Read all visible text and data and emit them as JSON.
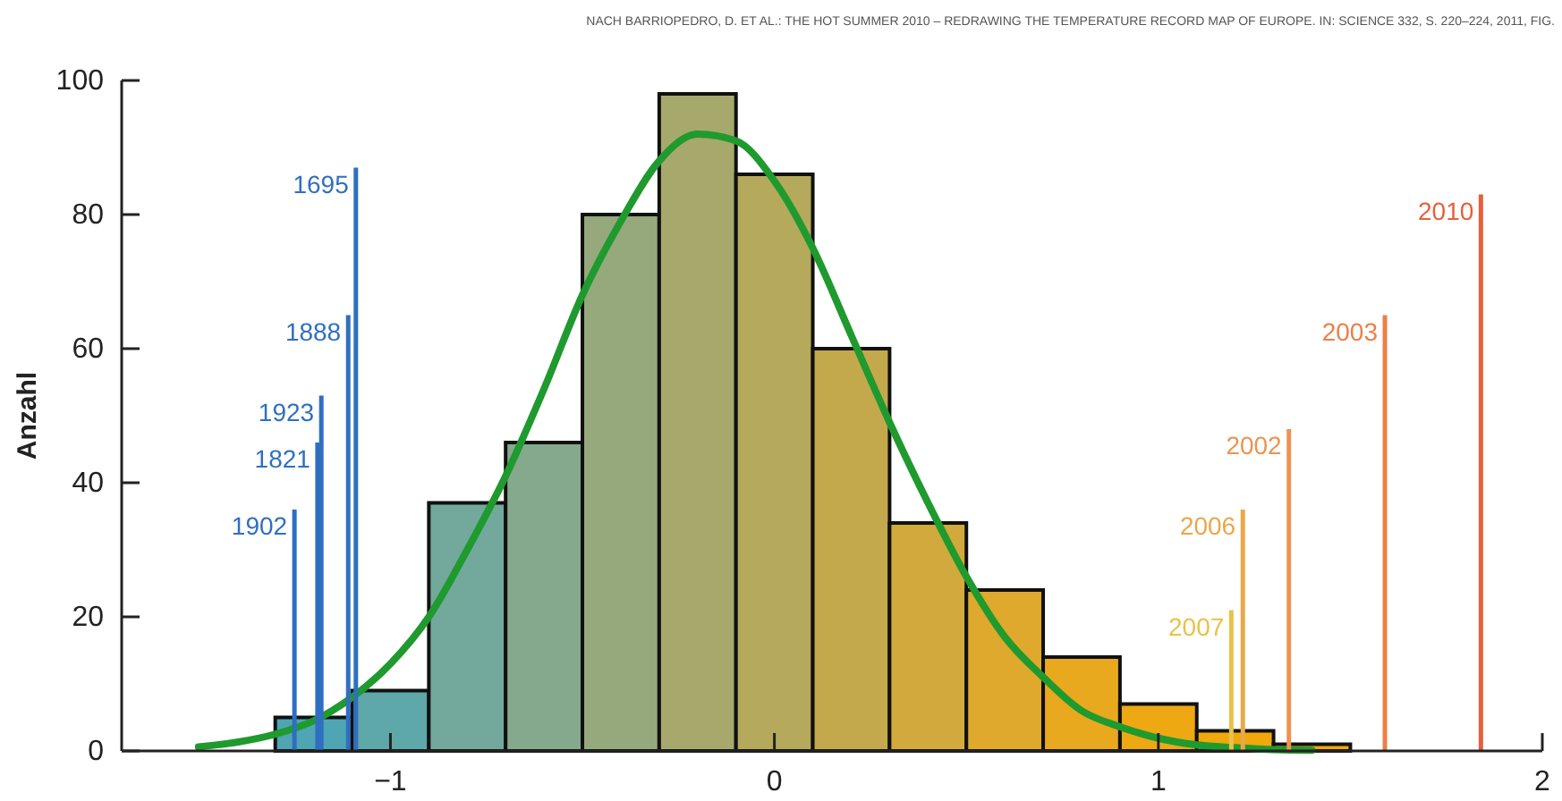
{
  "chart_data": {
    "type": "histogram",
    "ylabel": "Anzahl",
    "annotations": [
      "NACH BARRIOPEDRO, D. ET AL.: THE HOT SUMMER 2010 – REDRAWING THE TEMPERATURE RECORD MAP OF EUROPE. IN: SCIENCE 332, S. 220–224, 2011, FIG.",
      {
        "text": "1902",
        "x": -1.25,
        "y": 36
      },
      {
        "text": "1821",
        "x": -1.19,
        "y": 46
      },
      {
        "text": "1923",
        "x": -1.18,
        "y": 53
      },
      {
        "text": "1888",
        "x": -1.11,
        "y": 65
      },
      {
        "text": "1695",
        "x": -1.09,
        "y": 87
      },
      {
        "text": "2007",
        "x": 1.19,
        "y": 21
      },
      {
        "text": "2006",
        "x": 1.22,
        "y": 36
      },
      {
        "text": "2002",
        "x": 1.34,
        "y": 48
      },
      {
        "text": "2003",
        "x": 1.59,
        "y": 65
      },
      {
        "text": "2010",
        "x": 1.84,
        "y": 83
      }
    ],
    "bins": [
      -1.3,
      -1.1,
      -0.9,
      -0.7,
      -0.5,
      -0.3,
      -0.1,
      0.1,
      0.3,
      0.5,
      0.7,
      0.9,
      1.1,
      1.3,
      1.5
    ],
    "values": [
      5,
      9,
      37,
      46,
      80,
      98,
      86,
      60,
      34,
      24,
      14,
      7,
      3,
      1
    ],
    "colors": [
      "#4fa5b3",
      "#5ea8aa",
      "#72a99c",
      "#85a98c",
      "#96a97c",
      "#a6a96b",
      "#b5a95c",
      "#c4a94c",
      "#d2a93c",
      "#dea92c",
      "#e8a91e",
      "#eea814",
      "#f0a80c",
      "#f2a808"
    ],
    "series": [
      {
        "type": "line",
        "color": "#1f9a2e",
        "x": [
          -1.5,
          -1.4,
          -1.3,
          -1.2,
          -1.1,
          -1.0,
          -0.9,
          -0.8,
          -0.7,
          -0.6,
          -0.5,
          -0.4,
          -0.3,
          -0.2,
          -0.1,
          0,
          0.1,
          0.2,
          0.3,
          0.4,
          0.5,
          0.6,
          0.7,
          0.8,
          0.9,
          1.0,
          1.1,
          1.2,
          1.3,
          1.4
        ],
        "values": [
          0.6,
          1.3,
          2.5,
          4.5,
          8,
          13,
          20,
          30,
          41,
          54,
          68,
          79,
          88,
          92,
          91,
          85,
          75,
          62,
          49,
          37,
          26,
          17,
          11,
          6,
          3.6,
          1.9,
          0.9,
          0.5,
          0.2,
          0.1
        ]
      },
      {
        "type": "bar",
        "x": [
          -1.25,
          -1.19,
          -1.18,
          -1.11,
          -1.09,
          1.19,
          1.22,
          1.34,
          1.59,
          1.84
        ],
        "values": [
          36,
          46,
          53,
          65,
          87,
          21,
          36,
          48,
          65,
          83
        ],
        "colors": [
          "#2f6fc0",
          "#2f6fc0",
          "#2f6fc0",
          "#2f6fc0",
          "#2f6fc0",
          "#e8c24a",
          "#e9a84a",
          "#ea9450",
          "#ea8048",
          "#e5603c"
        ]
      }
    ],
    "xlim": [
      -1.7,
      2
    ],
    "xticks": [
      {
        "value": -1,
        "label": "−1"
      },
      0,
      1,
      2
    ],
    "ylim": [
      0,
      100
    ],
    "yticks": [
      0,
      20,
      40,
      60,
      80,
      100
    ]
  }
}
